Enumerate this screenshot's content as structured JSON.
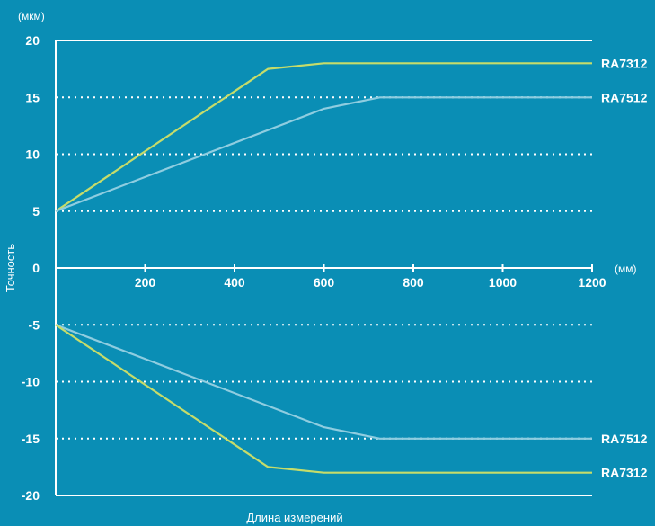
{
  "chart_data": {
    "type": "line",
    "title": "",
    "xlabel": "Длина измерений",
    "ylabel": "Точность",
    "x_unit": "(мм)",
    "y_unit": "(мкм)",
    "xlim": [
      0,
      1200
    ],
    "ylim": [
      -20,
      20
    ],
    "x_ticks": [
      200,
      400,
      600,
      800,
      1000,
      1200
    ],
    "y_ticks": [
      20,
      15,
      10,
      5,
      0,
      -5,
      -10,
      -15,
      -20
    ],
    "grid": "dotted horizontal",
    "series": [
      {
        "name": "RA7312",
        "color": "#c6dc6a",
        "label_side": "upper",
        "x": [
          0,
          475,
          600,
          1200
        ],
        "y": [
          5,
          17.5,
          18,
          18
        ]
      },
      {
        "name": "RA7512",
        "color": "#8fcde0",
        "label_side": "upper",
        "x": [
          0,
          600,
          725,
          1200
        ],
        "y": [
          5,
          14,
          15,
          15
        ]
      },
      {
        "name": "RA7512",
        "color": "#8fcde0",
        "label_side": "lower",
        "x": [
          0,
          600,
          725,
          1200
        ],
        "y": [
          -5,
          -14,
          -15,
          -15
        ]
      },
      {
        "name": "RA7312",
        "color": "#c6dc6a",
        "label_side": "lower",
        "x": [
          0,
          475,
          600,
          1200
        ],
        "y": [
          -5,
          -17.5,
          -18,
          -18
        ]
      }
    ]
  }
}
